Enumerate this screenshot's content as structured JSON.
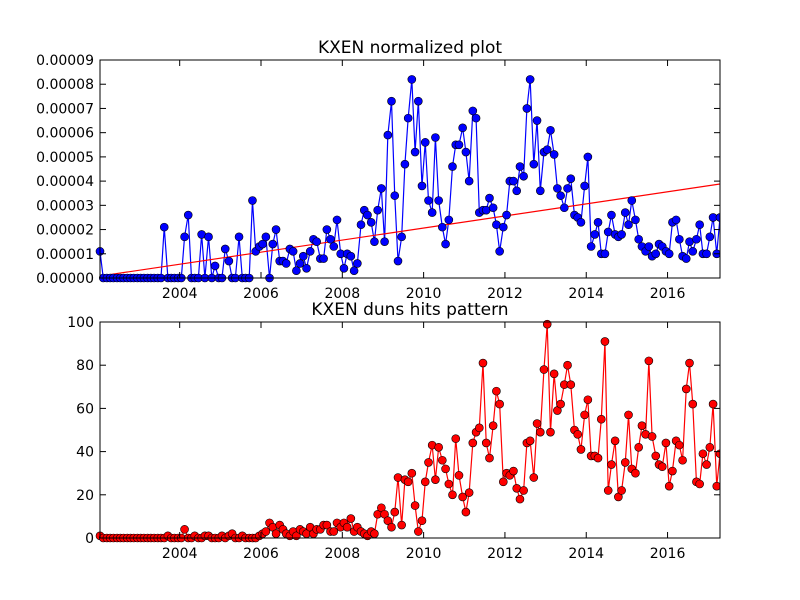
{
  "chart_data": [
    {
      "type": "line",
      "title": "KXEN normalized plot",
      "x": [
        2002.04,
        2002.12,
        2002.21,
        2002.29,
        2002.37,
        2002.46,
        2002.54,
        2002.62,
        2002.71,
        2002.79,
        2002.87,
        2002.96,
        2003.04,
        2003.12,
        2003.21,
        2003.29,
        2003.37,
        2003.46,
        2003.54,
        2003.62,
        2003.71,
        2003.79,
        2003.87,
        2003.96,
        2004.04,
        2004.12,
        2004.21,
        2004.29,
        2004.37,
        2004.46,
        2004.54,
        2004.62,
        2004.71,
        2004.79,
        2004.87,
        2004.96,
        2005.04,
        2005.12,
        2005.21,
        2005.29,
        2005.37,
        2005.46,
        2005.54,
        2005.62,
        2005.71,
        2005.79,
        2005.87,
        2005.96,
        2006.04,
        2006.12,
        2006.21,
        2006.29,
        2006.37,
        2006.46,
        2006.54,
        2006.62,
        2006.71,
        2006.79,
        2006.87,
        2006.96,
        2007.04,
        2007.12,
        2007.21,
        2007.29,
        2007.37,
        2007.46,
        2007.54,
        2007.62,
        2007.71,
        2007.79,
        2007.87,
        2007.96,
        2008.04,
        2008.12,
        2008.21,
        2008.29,
        2008.37,
        2008.46,
        2008.54,
        2008.62,
        2008.71,
        2008.79,
        2008.87,
        2008.96,
        2009.04,
        2009.12,
        2009.21,
        2009.29,
        2009.37,
        2009.46,
        2009.54,
        2009.62,
        2009.71,
        2009.79,
        2009.87,
        2009.96,
        2010.04,
        2010.12,
        2010.21,
        2010.29,
        2010.37,
        2010.46,
        2010.54,
        2010.62,
        2010.71,
        2010.79,
        2010.87,
        2010.96,
        2011.04,
        2011.12,
        2011.21,
        2011.29,
        2011.37,
        2011.46,
        2011.54,
        2011.62,
        2011.71,
        2011.79,
        2011.87,
        2011.96,
        2012.04,
        2012.12,
        2012.21,
        2012.29,
        2012.37,
        2012.46,
        2012.54,
        2012.62,
        2012.71,
        2012.79,
        2012.87,
        2012.96,
        2013.04,
        2013.12,
        2013.21,
        2013.29,
        2013.37,
        2013.46,
        2013.54,
        2013.62,
        2013.71,
        2013.79,
        2013.87,
        2013.96,
        2014.04,
        2014.12,
        2014.21,
        2014.29,
        2014.37,
        2014.46,
        2014.54,
        2014.62,
        2014.71,
        2014.79,
        2014.87,
        2014.96,
        2015.04,
        2015.12,
        2015.21,
        2015.29,
        2015.37,
        2015.46,
        2015.54,
        2015.62,
        2015.71,
        2015.79,
        2015.87,
        2015.96,
        2016.04,
        2016.12,
        2016.21,
        2016.29,
        2016.37,
        2016.46,
        2016.54,
        2016.62,
        2016.71,
        2016.79,
        2016.87,
        2016.96,
        2017.04,
        2017.12,
        2017.21,
        2017.29
      ],
      "values": [
        1.1e-05,
        0,
        0,
        0,
        0,
        0,
        0,
        0,
        0,
        0,
        0,
        0,
        0,
        0,
        0,
        0,
        0,
        0,
        0,
        2.1e-05,
        0,
        0,
        0,
        0,
        0,
        1.7e-05,
        2.6e-05,
        0,
        0,
        0,
        1.8e-05,
        0,
        1.7e-05,
        0,
        5e-06,
        0,
        0,
        1.2e-05,
        7e-06,
        0,
        0,
        1.7e-05,
        0,
        0,
        0,
        3.2e-05,
        1.1e-05,
        1.3e-05,
        1.4e-05,
        1.7e-05,
        0,
        1.4e-05,
        2e-05,
        7e-06,
        7e-06,
        6e-06,
        1.2e-05,
        1.1e-05,
        3e-06,
        6e-06,
        9e-06,
        4e-06,
        1.1e-05,
        1.6e-05,
        1.5e-05,
        8e-06,
        8e-06,
        2e-05,
        1.6e-05,
        1.3e-05,
        2.4e-05,
        1e-05,
        4e-06,
        1e-05,
        9e-06,
        3e-06,
        6e-06,
        2.2e-05,
        2.8e-05,
        2.6e-05,
        2.3e-05,
        1.5e-05,
        2.8e-05,
        3.7e-05,
        1.5e-05,
        5.9e-05,
        7.3e-05,
        3.4e-05,
        7e-06,
        1.7e-05,
        4.7e-05,
        6.6e-05,
        8.2e-05,
        5.2e-05,
        7.3e-05,
        3.8e-05,
        5.6e-05,
        3.2e-05,
        2.7e-05,
        5.8e-05,
        3.2e-05,
        2.1e-05,
        1.4e-05,
        2.4e-05,
        4.6e-05,
        5.5e-05,
        5.5e-05,
        6.2e-05,
        5.2e-05,
        4e-05,
        6.9e-05,
        6.6e-05,
        2.7e-05,
        2.8e-05,
        2.8e-05,
        3.3e-05,
        2.9e-05,
        2.2e-05,
        1.1e-05,
        2.1e-05,
        2.6e-05,
        4e-05,
        4e-05,
        3.6e-05,
        4.6e-05,
        4.2e-05,
        7e-05,
        8.2e-05,
        4.7e-05,
        6.5e-05,
        3.6e-05,
        5.2e-05,
        5.3e-05,
        6.1e-05,
        5.1e-05,
        3.7e-05,
        3.4e-05,
        2.9e-05,
        3.7e-05,
        4.1e-05,
        2.6e-05,
        2.5e-05,
        2.3e-05,
        3.8e-05,
        5e-05,
        1.3e-05,
        1.8e-05,
        2.3e-05,
        1e-05,
        1e-05,
        1.9e-05,
        2.6e-05,
        1.8e-05,
        1.7e-05,
        1.8e-05,
        2.7e-05,
        2.2e-05,
        3.2e-05,
        2.4e-05,
        1.6e-05,
        1.3e-05,
        1.1e-05,
        1.3e-05,
        9e-06,
        1e-05,
        1.4e-05,
        1.3e-05,
        1.1e-05,
        1e-05,
        2.3e-05,
        2.4e-05,
        1.6e-05,
        9e-06,
        8e-06,
        1.5e-05,
        1.1e-05,
        1.6e-05,
        2.2e-05,
        1e-05,
        1e-05,
        1.7e-05,
        2.5e-05,
        1e-05,
        2.5e-05
      ],
      "color": "#0000ff",
      "trend": {
        "x": [
          2002.04,
          2017.29
        ],
        "values": [
          8e-07,
          3.88e-05
        ],
        "color": "#ff0000"
      },
      "xlim": [
        2002.04,
        2017.29
      ],
      "xticks": [
        2004,
        2006,
        2008,
        2010,
        2012,
        2014,
        2016
      ],
      "ylim": [
        0,
        9e-05
      ],
      "yticks": [
        {
          "value": 0,
          "label": "0.00000"
        },
        1e-05,
        2e-05,
        3e-05,
        4e-05,
        5e-05,
        6e-05,
        7e-05,
        8e-05,
        9e-05
      ]
    },
    {
      "type": "line",
      "title": "KXEN duns hits pattern",
      "x": [
        2002.04,
        2002.12,
        2002.21,
        2002.29,
        2002.37,
        2002.46,
        2002.54,
        2002.62,
        2002.71,
        2002.79,
        2002.87,
        2002.96,
        2003.04,
        2003.12,
        2003.21,
        2003.29,
        2003.37,
        2003.46,
        2003.54,
        2003.62,
        2003.71,
        2003.79,
        2003.87,
        2003.96,
        2004.04,
        2004.12,
        2004.21,
        2004.29,
        2004.37,
        2004.46,
        2004.54,
        2004.62,
        2004.71,
        2004.79,
        2004.87,
        2004.96,
        2005.04,
        2005.12,
        2005.21,
        2005.29,
        2005.37,
        2005.46,
        2005.54,
        2005.62,
        2005.71,
        2005.79,
        2005.87,
        2005.96,
        2006.04,
        2006.12,
        2006.21,
        2006.29,
        2006.37,
        2006.46,
        2006.54,
        2006.62,
        2006.71,
        2006.79,
        2006.87,
        2006.96,
        2007.04,
        2007.12,
        2007.21,
        2007.29,
        2007.37,
        2007.46,
        2007.54,
        2007.62,
        2007.71,
        2007.79,
        2007.87,
        2007.96,
        2008.04,
        2008.12,
        2008.21,
        2008.29,
        2008.37,
        2008.46,
        2008.54,
        2008.62,
        2008.71,
        2008.79,
        2008.87,
        2008.96,
        2009.04,
        2009.12,
        2009.21,
        2009.29,
        2009.37,
        2009.46,
        2009.54,
        2009.62,
        2009.71,
        2009.79,
        2009.87,
        2009.96,
        2010.04,
        2010.12,
        2010.21,
        2010.29,
        2010.37,
        2010.46,
        2010.54,
        2010.62,
        2010.71,
        2010.79,
        2010.87,
        2010.96,
        2011.04,
        2011.12,
        2011.21,
        2011.29,
        2011.37,
        2011.46,
        2011.54,
        2011.62,
        2011.71,
        2011.79,
        2011.87,
        2011.96,
        2012.04,
        2012.12,
        2012.21,
        2012.29,
        2012.37,
        2012.46,
        2012.54,
        2012.62,
        2012.71,
        2012.79,
        2012.87,
        2012.96,
        2013.04,
        2013.12,
        2013.21,
        2013.29,
        2013.37,
        2013.46,
        2013.54,
        2013.62,
        2013.71,
        2013.79,
        2013.87,
        2013.96,
        2014.04,
        2014.12,
        2014.21,
        2014.29,
        2014.37,
        2014.46,
        2014.54,
        2014.62,
        2014.71,
        2014.79,
        2014.87,
        2014.96,
        2015.04,
        2015.12,
        2015.21,
        2015.29,
        2015.37,
        2015.46,
        2015.54,
        2015.62,
        2015.71,
        2015.79,
        2015.87,
        2015.96,
        2016.04,
        2016.12,
        2016.21,
        2016.29,
        2016.37,
        2016.46,
        2016.54,
        2016.62,
        2016.71,
        2016.79,
        2016.87,
        2016.96,
        2017.04,
        2017.12,
        2017.21,
        2017.29
      ],
      "values": [
        1,
        0,
        0,
        0,
        0,
        0,
        0,
        0,
        0,
        0,
        0,
        0,
        0,
        0,
        0,
        0,
        0,
        0,
        0,
        0,
        1,
        0,
        0,
        0,
        0,
        4,
        0,
        0,
        1,
        0,
        0,
        1,
        1,
        0,
        0,
        0,
        1,
        0,
        1,
        2,
        0,
        0,
        1,
        0,
        0,
        0,
        0,
        1,
        2,
        3,
        7,
        5,
        2,
        6,
        4,
        2,
        1,
        3,
        1,
        4,
        3,
        2,
        5,
        2,
        4,
        4,
        6,
        6,
        3,
        3,
        7,
        5,
        7,
        5,
        9,
        3,
        5,
        3,
        2,
        1,
        3,
        2,
        11,
        14,
        11,
        8,
        5,
        12,
        28,
        6,
        27,
        26,
        30,
        15,
        3,
        8,
        26,
        35,
        43,
        27,
        42,
        36,
        32,
        25,
        20,
        46,
        29,
        19,
        12,
        21,
        44,
        49,
        51,
        81,
        44,
        37,
        52,
        68,
        62,
        26,
        30,
        29,
        31,
        23,
        18,
        22,
        44,
        45,
        28,
        53,
        49,
        78,
        99,
        49,
        76,
        59,
        62,
        71,
        80,
        71,
        50,
        48,
        41,
        57,
        64,
        38,
        38,
        37,
        55,
        91,
        22,
        34,
        45,
        19,
        22,
        35,
        57,
        32,
        30,
        42,
        52,
        48,
        82,
        47,
        38,
        34,
        33,
        44,
        24,
        31,
        45,
        43,
        36,
        69,
        81,
        62,
        26,
        25,
        39,
        34,
        42,
        62,
        24,
        39
      ],
      "color": "#ff0000",
      "xlim": [
        2002.04,
        2017.29
      ],
      "xticks": [
        2004,
        2006,
        2008,
        2010,
        2012,
        2014,
        2016
      ],
      "ylim": [
        0,
        100
      ],
      "yticks": [
        0,
        20,
        40,
        60,
        80,
        100
      ]
    }
  ]
}
